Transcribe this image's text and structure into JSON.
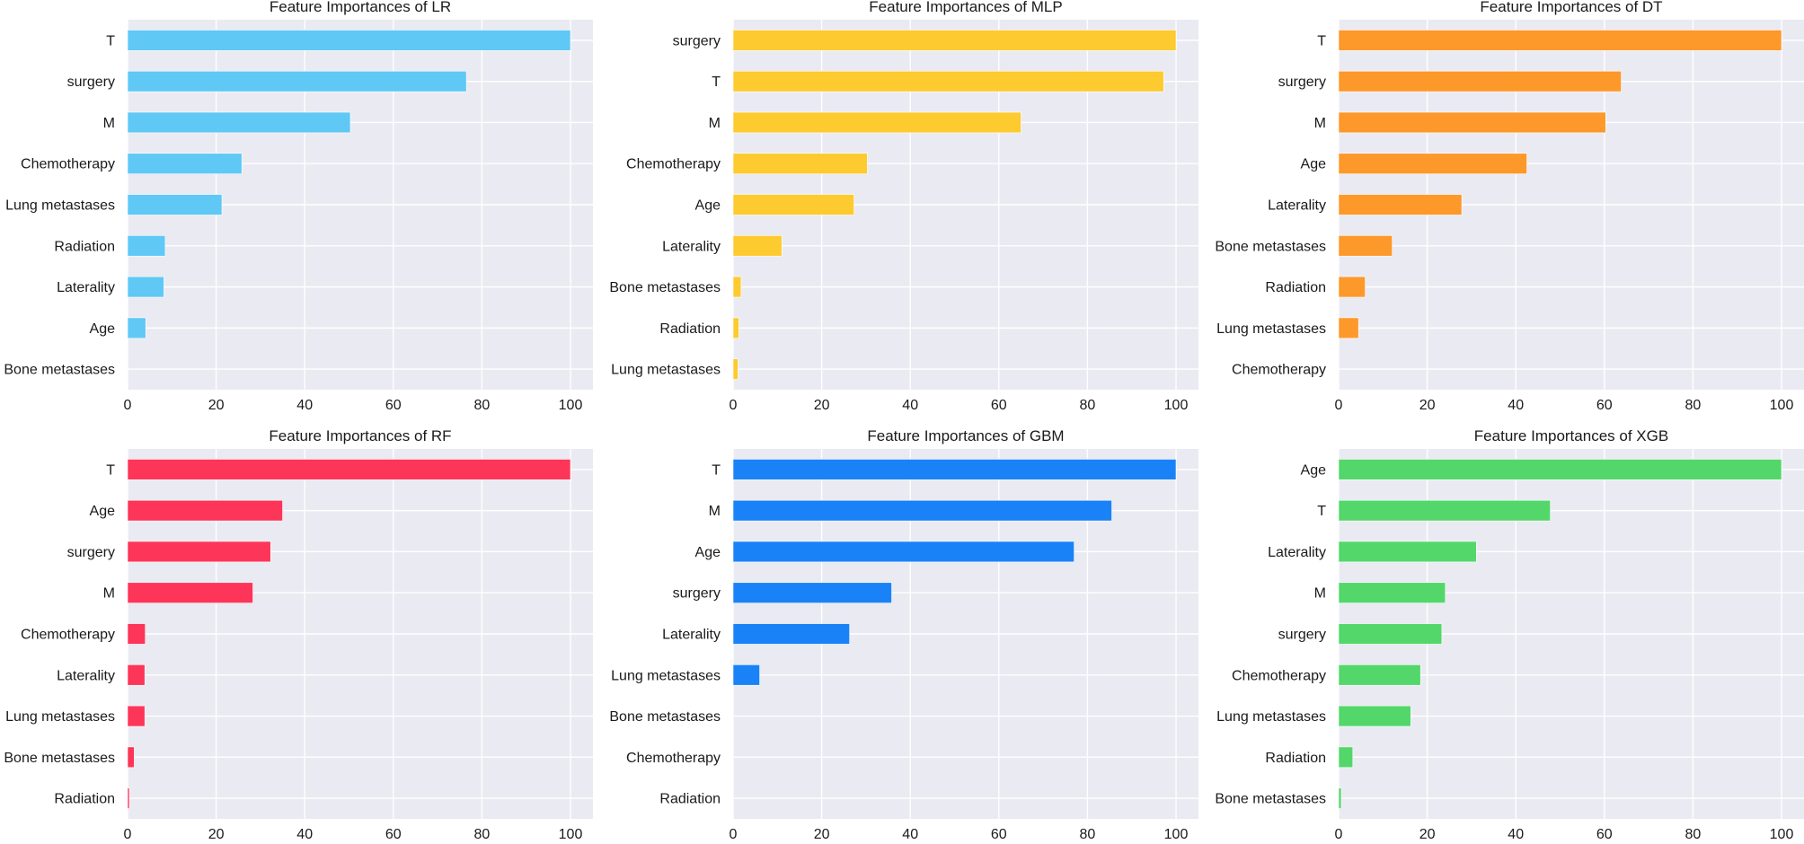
{
  "chart_data": [
    {
      "type": "bar",
      "orientation": "horizontal",
      "title": "Feature Importances of LR",
      "color": "#5fc8f5",
      "categories": [
        "T",
        "surgery",
        "M",
        "Chemotherapy",
        "Lung metastases",
        "Radiation",
        "Laterality",
        "Age",
        "Bone metastases"
      ],
      "values": [
        100,
        76.5,
        50.3,
        25.8,
        21.3,
        8.5,
        8.2,
        4.1,
        0
      ],
      "xlim": [
        0,
        105
      ],
      "xticks": [
        0,
        20,
        40,
        60,
        80,
        100
      ],
      "grid": true
    },
    {
      "type": "bar",
      "orientation": "horizontal",
      "title": "Feature Importances of MLP",
      "color": "#fdca2f",
      "categories": [
        "surgery",
        "T",
        "M",
        "Chemotherapy",
        "Age",
        "Laterality",
        "Bone metastases",
        "Radiation",
        "Lung metastases"
      ],
      "values": [
        100,
        97.2,
        65,
        30.3,
        27.3,
        11,
        1.8,
        1.3,
        1.1
      ],
      "xlim": [
        0,
        105
      ],
      "xticks": [
        0,
        20,
        40,
        60,
        80,
        100
      ],
      "grid": true
    },
    {
      "type": "bar",
      "orientation": "horizontal",
      "title": "Feature Importances of DT",
      "color": "#fd982a",
      "categories": [
        "T",
        "surgery",
        "M",
        "Age",
        "Laterality",
        "Bone metastases",
        "Radiation",
        "Lung metastases",
        "Chemotherapy"
      ],
      "values": [
        100,
        63.8,
        60.3,
        42.5,
        27.8,
        12.1,
        6,
        4.5,
        0
      ],
      "xlim": [
        0,
        105
      ],
      "xticks": [
        0,
        20,
        40,
        60,
        80,
        100
      ],
      "grid": true
    },
    {
      "type": "bar",
      "orientation": "horizontal",
      "title": "Feature Importances of RF",
      "color": "#fd3558",
      "categories": [
        "T",
        "Age",
        "surgery",
        "M",
        "Chemotherapy",
        "Laterality",
        "Lung metastases",
        "Bone metastases",
        "Radiation"
      ],
      "values": [
        100,
        35,
        32.3,
        28.3,
        4,
        3.9,
        3.9,
        1.5,
        0.4
      ],
      "xlim": [
        0,
        105
      ],
      "xticks": [
        0,
        20,
        40,
        60,
        80,
        100
      ],
      "grid": true
    },
    {
      "type": "bar",
      "orientation": "horizontal",
      "title": "Feature Importances of GBM",
      "color": "#1a82f7",
      "categories": [
        "T",
        "M",
        "Age",
        "surgery",
        "Laterality",
        "Lung metastases",
        "Bone metastases",
        "Chemotherapy",
        "Radiation"
      ],
      "values": [
        100,
        85.5,
        77,
        35.8,
        26.3,
        6,
        0,
        0,
        0
      ],
      "xlim": [
        0,
        105
      ],
      "xticks": [
        0,
        20,
        40,
        60,
        80,
        100
      ],
      "grid": true
    },
    {
      "type": "bar",
      "orientation": "horizontal",
      "title": "Feature Importances of XGB",
      "color": "#53d76a",
      "categories": [
        "Age",
        "T",
        "Laterality",
        "M",
        "surgery",
        "Chemotherapy",
        "Lung metastases",
        "Radiation",
        "Bone metastases"
      ],
      "values": [
        100,
        47.8,
        31.1,
        24.1,
        23.3,
        18.5,
        16.3,
        3.2,
        0.6
      ],
      "xlim": [
        0,
        105
      ],
      "xticks": [
        0,
        20,
        40,
        60,
        80,
        100
      ],
      "grid": true
    }
  ]
}
